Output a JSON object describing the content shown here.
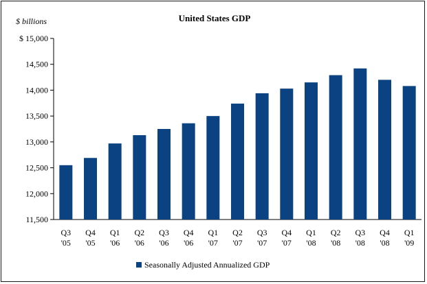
{
  "chart_data": {
    "type": "bar",
    "title": "United States GDP",
    "unit_label": "$ billions",
    "categories": [
      [
        "Q3",
        "'05"
      ],
      [
        "Q4",
        "'05"
      ],
      [
        "Q1",
        "'06"
      ],
      [
        "Q2",
        "'06"
      ],
      [
        "Q3",
        "'06"
      ],
      [
        "Q4",
        "'06"
      ],
      [
        "Q1",
        "'07"
      ],
      [
        "Q2",
        "'07"
      ],
      [
        "Q3",
        "'07"
      ],
      [
        "Q4",
        "'07"
      ],
      [
        "Q1",
        "'08"
      ],
      [
        "Q2",
        "'08"
      ],
      [
        "Q3",
        "'08"
      ],
      [
        "Q4",
        "'08"
      ],
      [
        "Q1",
        "'09"
      ]
    ],
    "series": [
      {
        "name": "Seasonally Adjusted Annualized GDP",
        "color": "#0b4382",
        "values": [
          12550,
          12690,
          12970,
          13130,
          13250,
          13360,
          13500,
          13740,
          13940,
          14030,
          14150,
          14290,
          14420,
          14200,
          14080
        ]
      }
    ],
    "ylim": [
      11500,
      15000
    ],
    "yticks": [
      11500,
      12000,
      12500,
      13000,
      13500,
      14000,
      14500,
      15000
    ],
    "ytick_labels": [
      "11,500",
      "12,000",
      "12,500",
      "13,000",
      "13,500",
      "14,000",
      "14,500",
      "$ 15,000"
    ],
    "grid": false,
    "legend_position": "bottom-center"
  }
}
